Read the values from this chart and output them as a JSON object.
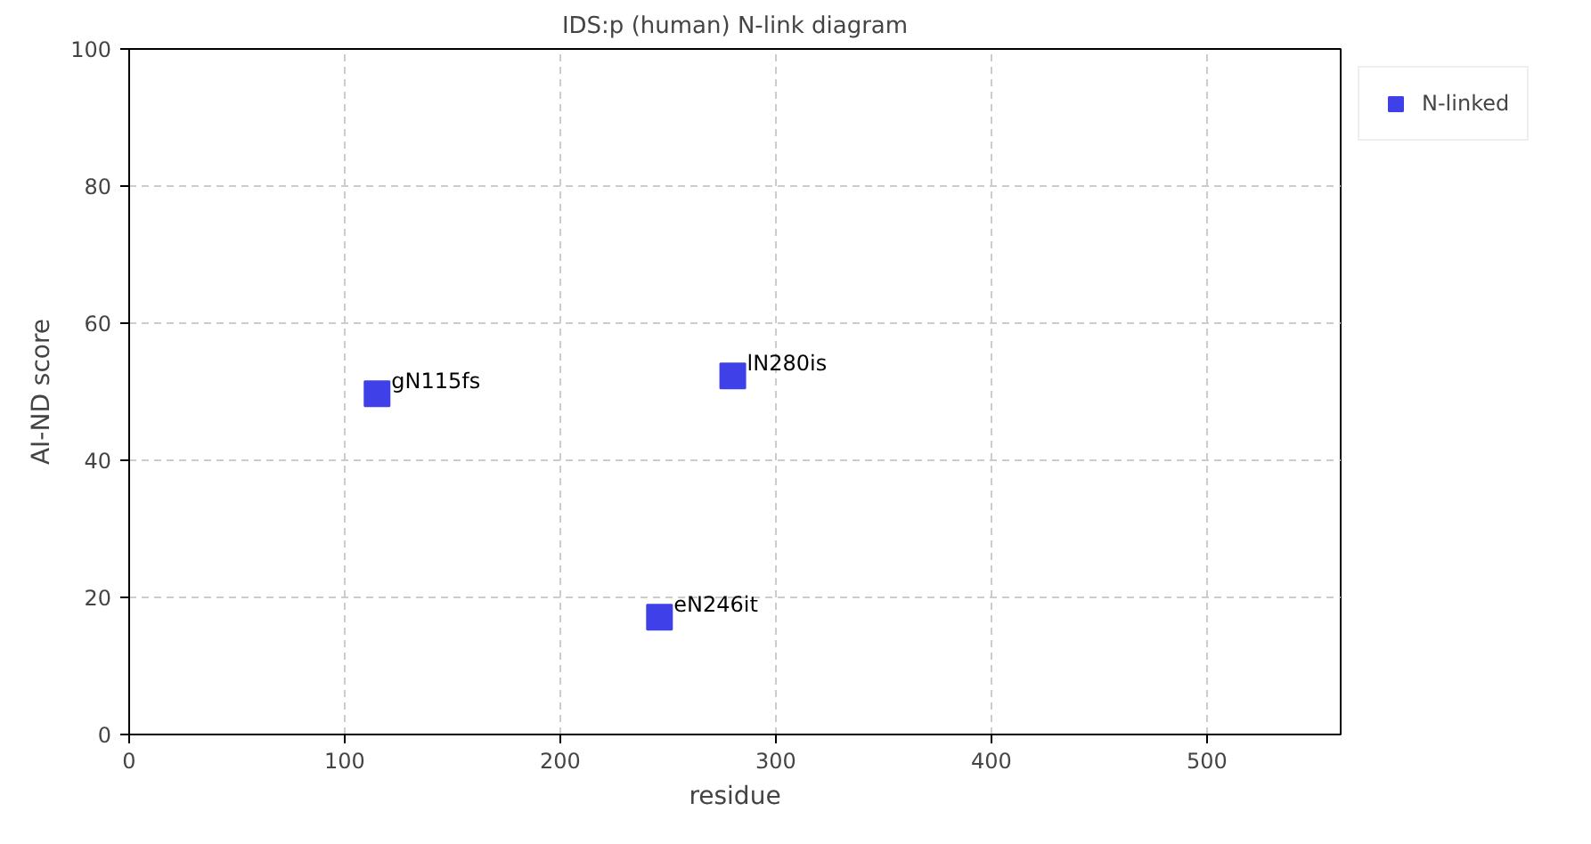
{
  "chart_data": {
    "type": "scatter",
    "title": "IDS:p (human) N-link diagram",
    "xlabel": "residue",
    "ylabel": "AI-ND score",
    "x": [
      115,
      280,
      246
    ],
    "series": [
      {
        "name": "N-linked",
        "color": "#4040e8",
        "values": [
          49.7,
          52.3,
          17.1
        ]
      }
    ],
    "annotations": [
      {
        "text": "gN115fs",
        "x": 115,
        "y": 49.7
      },
      {
        "text": "lN280is",
        "x": 280,
        "y": 52.3
      },
      {
        "text": "eN246it",
        "x": 246,
        "y": 17.1
      }
    ],
    "xlim": [
      0,
      562
    ],
    "ylim": [
      0,
      100
    ],
    "xticks": [
      0,
      100,
      200,
      300,
      400,
      500
    ],
    "yticks": [
      0,
      20,
      40,
      60,
      80,
      100
    ],
    "grid": true,
    "legend": "top right",
    "marker": "square"
  }
}
